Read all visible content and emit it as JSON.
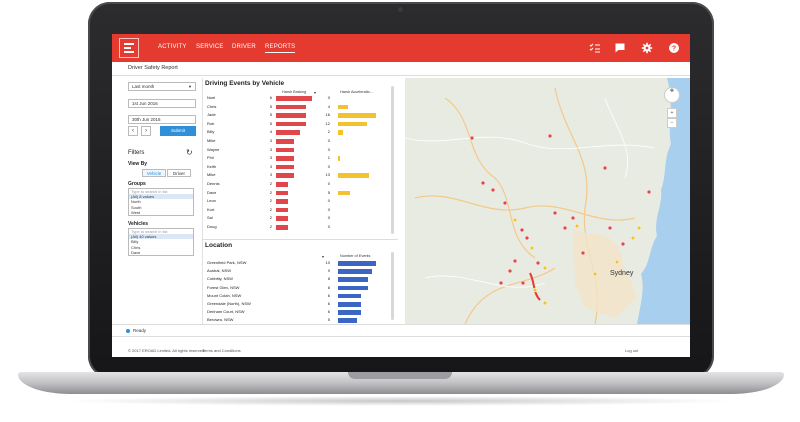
{
  "nav": {
    "activity": "ACTIVITY",
    "service": "SERVICE",
    "driver": "DRIVER",
    "reports": "REPORTS"
  },
  "toolbar_icons": [
    "checklist-icon",
    "chat-icon",
    "gear-icon",
    "help-icon"
  ],
  "page_title": "Driver Safety Report",
  "date_range": {
    "period": "Last month",
    "from": "1st Jun 2016",
    "to": "30th Jun 2016",
    "submit": "Submit",
    "prev": "‹",
    "next": "›"
  },
  "filters": {
    "title": "Filters",
    "view_by": "View By",
    "view_options": [
      "Vehicle",
      "Driver"
    ],
    "groups_label": "Groups",
    "groups_search": "Type to search in list",
    "groups": [
      "(All) 8 values",
      "North",
      "South",
      "West"
    ],
    "vehicles_label": "Vehicles",
    "vehicles_search": "Type to search in list",
    "vehicles": [
      "(All) 40 values",
      "Billy",
      "Chris",
      "Dave"
    ]
  },
  "driving_events": {
    "title": "Driving Events by Vehicle",
    "col_braking": "Harsh Braking",
    "col_accel": "Harsh Acceleratio...",
    "rows": [
      {
        "name": "Noel",
        "braking": 6,
        "accel": 0
      },
      {
        "name": "Chris",
        "braking": 5,
        "accel": 4
      },
      {
        "name": "Jade",
        "braking": 5,
        "accel": 16
      },
      {
        "name": "Rob",
        "braking": 5,
        "accel": 12
      },
      {
        "name": "Billy",
        "braking": 4,
        "accel": 2
      },
      {
        "name": "Mike",
        "braking": 3,
        "accel": 0
      },
      {
        "name": "Wayne",
        "braking": 3,
        "accel": 0
      },
      {
        "name": "Phil",
        "braking": 3,
        "accel": 1
      },
      {
        "name": "Keith",
        "braking": 3,
        "accel": 0
      },
      {
        "name": "Mike",
        "braking": 3,
        "accel": 13
      },
      {
        "name": "Dennis",
        "braking": 2,
        "accel": 0
      },
      {
        "name": "Dave",
        "braking": 2,
        "accel": 5
      },
      {
        "name": "Leon",
        "braking": 2,
        "accel": 0
      },
      {
        "name": "Kurt",
        "braking": 2,
        "accel": 0
      },
      {
        "name": "Sal",
        "braking": 2,
        "accel": 0
      },
      {
        "name": "Doug",
        "braking": 2,
        "accel": 0
      }
    ]
  },
  "location": {
    "title": "Location",
    "col_events": "Number of Events",
    "rows": [
      {
        "name": "Greenfield Park, NSW",
        "events": 10
      },
      {
        "name": "Austral, NSW",
        "events": 9
      },
      {
        "name": "Cobbitty, NSW",
        "events": 8
      },
      {
        "name": "Forest Glen, NSW",
        "events": 8
      },
      {
        "name": "Mount Colah, NSW",
        "events": 6
      },
      {
        "name": "Greendale (North), NSW",
        "events": 6
      },
      {
        "name": "Denham Court, NSW",
        "events": 6
      },
      {
        "name": "Berowra, NSW",
        "events": 5
      }
    ]
  },
  "map": {
    "city_label": "Sydney",
    "zoom_in": "+",
    "zoom_out": "−"
  },
  "status": "Ready",
  "footer": {
    "copyright": "© 2017 EROAD Limited. All rights reserved.",
    "terms": "Terms and Conditions",
    "logout": "Log out"
  },
  "colors": {
    "brand": "#e53a2f",
    "braking": "#e0474a",
    "accel": "#f2c230",
    "events": "#3b66c4",
    "button": "#2f8fd8"
  }
}
